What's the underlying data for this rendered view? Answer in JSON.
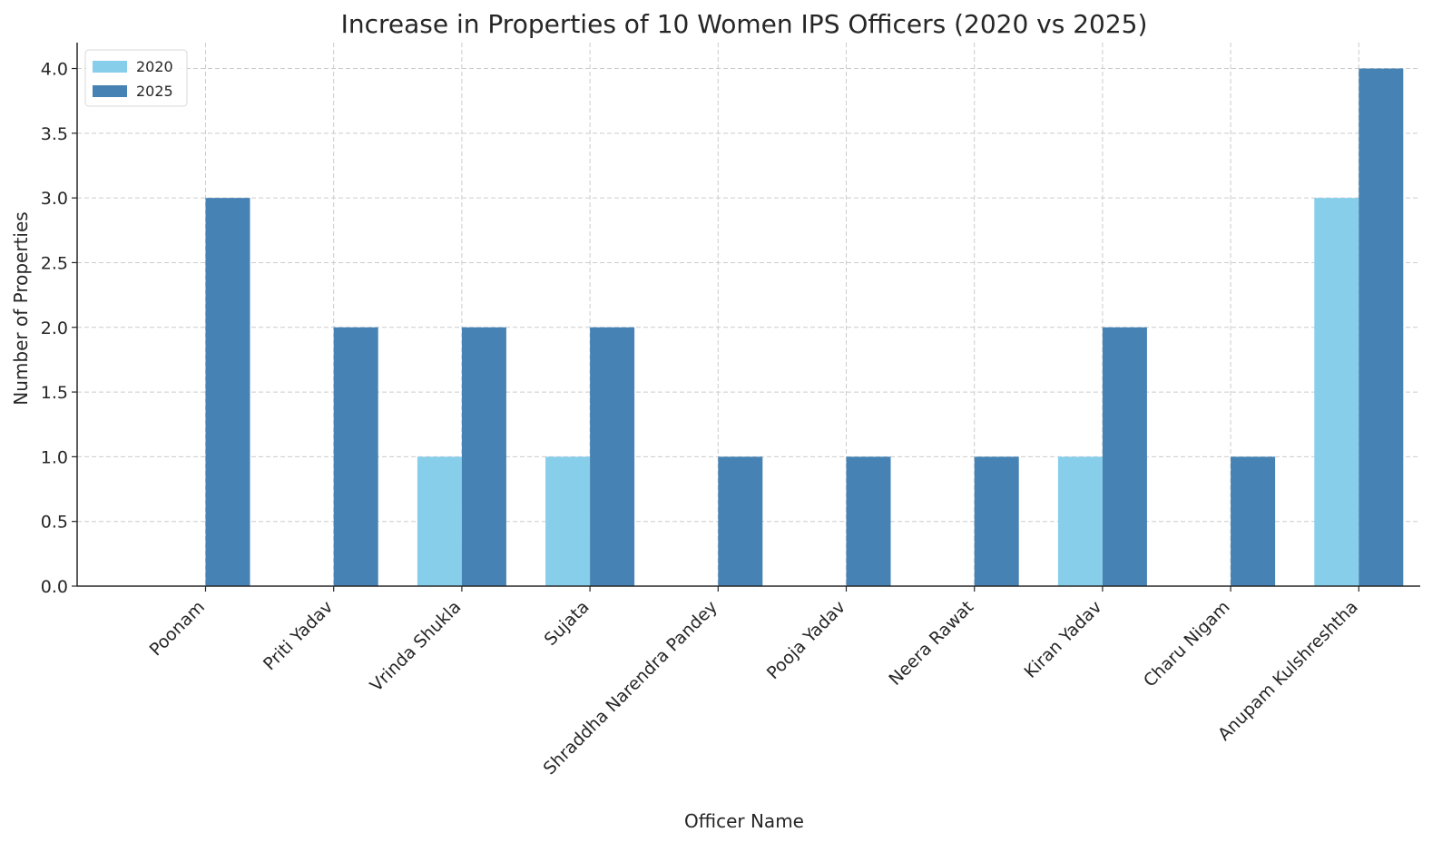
{
  "chart_data": {
    "type": "bar",
    "title": "Increase in Properties of 10 Women IPS Officers (2020 vs 2025)",
    "xlabel": "Officer Name",
    "ylabel": "Number of Properties",
    "ylim": [
      0,
      4.2
    ],
    "yticks": [
      "0.0",
      "0.5",
      "1.0",
      "1.5",
      "2.0",
      "2.5",
      "3.0",
      "3.5",
      "4.0"
    ],
    "grid": true,
    "legend_position": "top-left",
    "categories": [
      "Poonam",
      "Priti Yadav",
      "Vrinda Shukla",
      "Sujata",
      "Shraddha Narendra Pandey",
      "Pooja Yadav",
      "Neera Rawat",
      "Kiran Yadav",
      "Charu Nigam",
      "Anupam Kulshreshtha"
    ],
    "series": [
      {
        "name": "2020",
        "color": "#87ceeb",
        "values": [
          0,
          0,
          1,
          1,
          0,
          0,
          0,
          1,
          0,
          3
        ]
      },
      {
        "name": "2025",
        "color": "#4682b4",
        "values": [
          3,
          2,
          2,
          2,
          1,
          1,
          1,
          2,
          1,
          4
        ]
      }
    ]
  }
}
